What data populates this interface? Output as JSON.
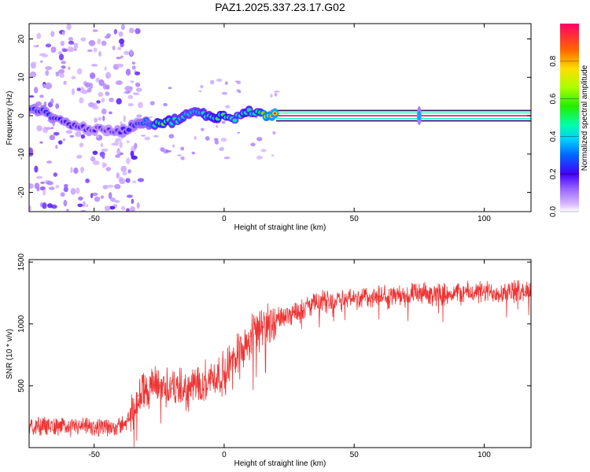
{
  "title": "PAZ1.2025.337.23.17.G02",
  "chart_data": [
    {
      "type": "heatmap",
      "title": "PAZ1.2025.337.23.17.G02",
      "xlabel": "Height of straight line (km)",
      "ylabel": "Frequency (Hz)",
      "xlim": [
        -75,
        118
      ],
      "ylim": [
        -25,
        24
      ],
      "xticks": [
        -50,
        0,
        50,
        100
      ],
      "yticks": [
        -20,
        -10,
        0,
        10,
        20
      ],
      "colorbar": {
        "label": "Normalized spectral amplitude",
        "range": [
          0.0,
          1.0
        ],
        "ticks": [
          0.0,
          0.2,
          0.4,
          0.6,
          0.8
        ]
      },
      "ridge": {
        "description": "frequency ridge (Hz) vs height (km)",
        "x": [
          -73,
          -68,
          -62,
          -56,
          -50,
          -44,
          -38,
          -34,
          -31,
          -28,
          -24,
          -20,
          -16,
          -12,
          -8,
          -4,
          0,
          4,
          8,
          12,
          16,
          20,
          25,
          40,
          60,
          75,
          90,
          105,
          118
        ],
        "y": [
          2,
          0.5,
          -1.5,
          -3,
          -3.5,
          -4,
          -3.8,
          -2,
          -1.5,
          -2,
          -1.8,
          -1.5,
          -0.5,
          1,
          0.3,
          -0.3,
          0,
          -1,
          1.3,
          0.8,
          0.2,
          0,
          0,
          0,
          0,
          0,
          0,
          0,
          0
        ],
        "amplitude": [
          0.3,
          0.3,
          0.25,
          0.25,
          0.2,
          0.2,
          0.25,
          0.3,
          0.35,
          0.4,
          0.7,
          0.5,
          0.5,
          0.45,
          0.5,
          0.55,
          0.6,
          0.5,
          0.55,
          0.5,
          0.9,
          1.0,
          1.0,
          1.0,
          1.0,
          1.0,
          1.0,
          1.0,
          1.0
        ]
      },
      "noise_band_x": [
        -75,
        -38
      ]
    },
    {
      "type": "line",
      "title": "",
      "xlabel": "Height of straight line (km)",
      "ylabel": "SNR (10 * v/v)",
      "xlim": [
        -75,
        118
      ],
      "ylim": [
        0,
        1520
      ],
      "xticks": [
        -50,
        0,
        50,
        100
      ],
      "yticks": [
        500,
        1000,
        1500
      ],
      "series": [
        {
          "name": "SNR",
          "color": "#ee3333",
          "x": [
            -75,
            -70,
            -65,
            -60,
            -55,
            -50,
            -45,
            -40,
            -36,
            -33,
            -30,
            -25,
            -20,
            -15,
            -10,
            -5,
            0,
            5,
            10,
            15,
            20,
            25,
            30,
            35,
            40,
            50,
            60,
            70,
            80,
            90,
            100,
            110,
            118
          ],
          "y": [
            150,
            180,
            175,
            170,
            165,
            160,
            160,
            175,
            250,
            420,
            480,
            500,
            480,
            450,
            520,
            560,
            600,
            780,
            900,
            980,
            1030,
            1080,
            1130,
            1160,
            1190,
            1210,
            1220,
            1230,
            1240,
            1250,
            1255,
            1260,
            1270
          ]
        }
      ]
    }
  ]
}
